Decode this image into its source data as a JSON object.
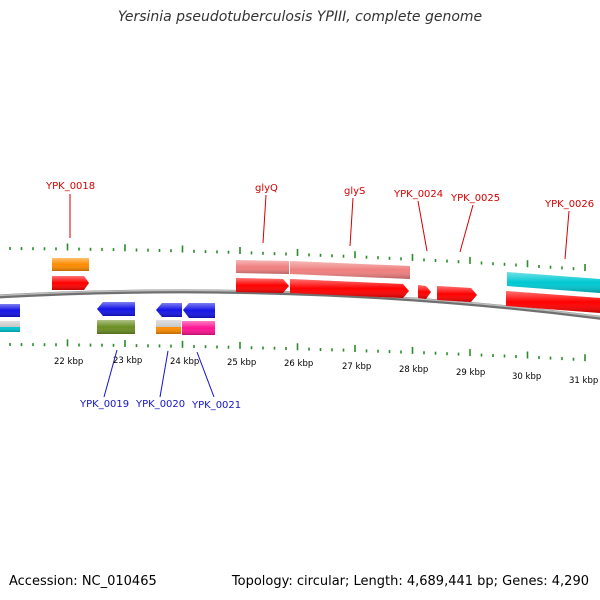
{
  "title": "Yersinia pseudotuberculosis YPIII, complete genome",
  "footer": {
    "accession": "Accession: NC_010465",
    "topology": "Topology: circular; Length: 4,689,441 bp; Genes: 4,290"
  },
  "colors": {
    "label_upper": "#d40000",
    "label_lower": "#1414c8",
    "tick": "#2a8c2a",
    "backbone": "#8a8a8a",
    "cds": "#ff0000",
    "rrna_like": "#ef7f7f",
    "trna": "#ff8c00",
    "blue": "#1414e6",
    "olive": "#6b8e23",
    "magenta": "#ff1493",
    "cyan": "#00c8d2",
    "grey": "#c8c8c8"
  },
  "scale": {
    "unit": "kbp",
    "ticks": [
      {
        "kbp": 22,
        "label": "22 kbp"
      },
      {
        "kbp": 23,
        "label": "23 kbp"
      },
      {
        "kbp": 24,
        "label": "24 kbp"
      },
      {
        "kbp": 25,
        "label": "25 kbp"
      },
      {
        "kbp": 26,
        "label": "26 kbp"
      },
      {
        "kbp": 27,
        "label": "27 kbp"
      },
      {
        "kbp": 28,
        "label": "28 kbp"
      },
      {
        "kbp": 29,
        "label": "29 kbp"
      },
      {
        "kbp": 30,
        "label": "30 kbp"
      },
      {
        "kbp": 31,
        "label": "31 kbp"
      }
    ]
  },
  "gene_labels_upper": [
    "YPK_0018",
    "glyQ",
    "glyS",
    "YPK_0024",
    "YPK_0025",
    "YPK_0026"
  ],
  "gene_labels_lower": [
    "YPK_0019",
    "YPK_0020",
    "YPK_0021"
  ]
}
